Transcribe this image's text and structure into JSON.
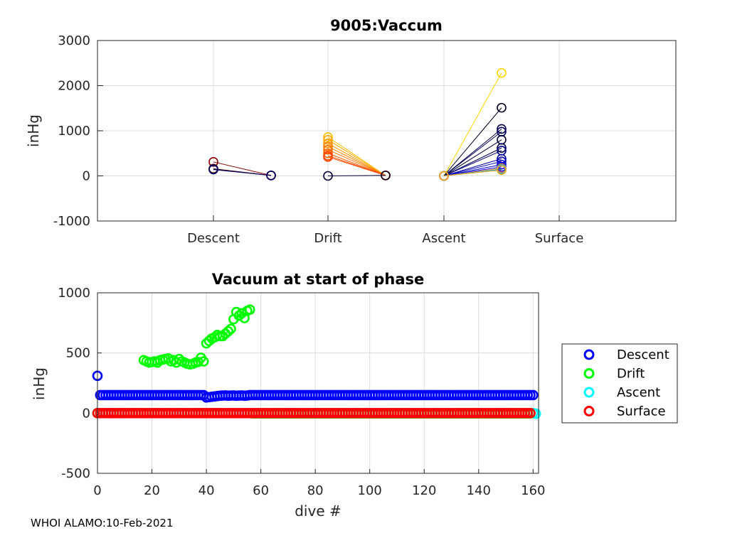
{
  "chart_data": [
    {
      "type": "line",
      "title": "9005:Vaccum",
      "ylabel": "inHg",
      "xlabel": "",
      "ylim": [
        -1000,
        3000
      ],
      "yticks": [
        "-1000",
        "0",
        "1000",
        "2000",
        "3000"
      ],
      "categories": [
        "Descent",
        "Drift",
        "Ascent",
        "Surface"
      ],
      "segments": [
        {
          "phase": "Descent",
          "start": 310,
          "end": 10,
          "color": "#8b0000"
        },
        {
          "phase": "Descent",
          "start": 160,
          "end": 10,
          "color": "#8b1a00"
        },
        {
          "phase": "Descent",
          "start": 150,
          "end": 10,
          "color": "#000033"
        },
        {
          "phase": "Descent",
          "start": 140,
          "end": 10,
          "color": "#000066"
        },
        {
          "phase": "Drift",
          "start": 860,
          "end": 10,
          "color": "#ffc000"
        },
        {
          "phase": "Drift",
          "start": 800,
          "end": 10,
          "color": "#ffa500"
        },
        {
          "phase": "Drift",
          "start": 720,
          "end": 10,
          "color": "#ff9900"
        },
        {
          "phase": "Drift",
          "start": 650,
          "end": 10,
          "color": "#ff8000"
        },
        {
          "phase": "Drift",
          "start": 580,
          "end": 10,
          "color": "#ff7000"
        },
        {
          "phase": "Drift",
          "start": 500,
          "end": 10,
          "color": "#ff6000"
        },
        {
          "phase": "Drift",
          "start": 450,
          "end": 10,
          "color": "#ff5000"
        },
        {
          "phase": "Drift",
          "start": 420,
          "end": 10,
          "color": "#ff4000"
        },
        {
          "phase": "Drift",
          "start": 0,
          "end": 10,
          "color": "#000033"
        },
        {
          "phase": "Ascent",
          "start": 0,
          "end": 2280,
          "color": "#ffd700"
        },
        {
          "phase": "Ascent",
          "start": 0,
          "end": 1510,
          "color": "#000022"
        },
        {
          "phase": "Ascent",
          "start": 0,
          "end": 1040,
          "color": "#000044"
        },
        {
          "phase": "Ascent",
          "start": 0,
          "end": 980,
          "color": "#000066"
        },
        {
          "phase": "Ascent",
          "start": 0,
          "end": 800,
          "color": "#000033"
        },
        {
          "phase": "Ascent",
          "start": 0,
          "end": 620,
          "color": "#00004d"
        },
        {
          "phase": "Ascent",
          "start": 0,
          "end": 560,
          "color": "#000080"
        },
        {
          "phase": "Ascent",
          "start": 0,
          "end": 380,
          "color": "#000099"
        },
        {
          "phase": "Ascent",
          "start": 0,
          "end": 320,
          "color": "#0000b3"
        },
        {
          "phase": "Ascent",
          "start": 0,
          "end": 250,
          "color": "#0000cc"
        },
        {
          "phase": "Ascent",
          "start": 0,
          "end": 200,
          "color": "#0000ff"
        },
        {
          "phase": "Ascent",
          "start": 0,
          "end": 170,
          "color": "#ff8c00"
        },
        {
          "phase": "Ascent",
          "start": 0,
          "end": 150,
          "color": "#1e90ff"
        },
        {
          "phase": "Ascent",
          "start": 0,
          "end": 140,
          "color": "#00bfff"
        },
        {
          "phase": "Ascent",
          "start": 0,
          "end": 130,
          "color": "#ffa500"
        }
      ]
    },
    {
      "type": "scatter",
      "title": "Vacuum at start of phase",
      "xlabel": "dive #",
      "ylabel": "inHg",
      "xlim": [
        0,
        162
      ],
      "ylim": [
        -500,
        1000
      ],
      "xticks": [
        "0",
        "20",
        "40",
        "60",
        "80",
        "100",
        "120",
        "140",
        "160"
      ],
      "yticks": [
        "-500",
        "0",
        "500",
        "1000"
      ],
      "legend_position": "outside-right",
      "series": [
        {
          "name": "Descent",
          "color": "#0000ff",
          "description": "~150 inHg for dives 1–160 (dive 0 at ~310, dips to ~130 near dive 40)"
        },
        {
          "name": "Drift",
          "color": "#00ff00",
          "points": [
            [
              0,
              0
            ],
            [
              5,
              0
            ],
            [
              10,
              0
            ],
            [
              15,
              0
            ],
            [
              17,
              440
            ],
            [
              18,
              430
            ],
            [
              19,
              420
            ],
            [
              20,
              425
            ],
            [
              21,
              430
            ],
            [
              22,
              420
            ],
            [
              23,
              440
            ],
            [
              24,
              445
            ],
            [
              25,
              450
            ],
            [
              26,
              455
            ],
            [
              27,
              430
            ],
            [
              28,
              440
            ],
            [
              29,
              420
            ],
            [
              30,
              450
            ],
            [
              31,
              430
            ],
            [
              32,
              420
            ],
            [
              33,
              410
            ],
            [
              34,
              405
            ],
            [
              35,
              410
            ],
            [
              36,
              420
            ],
            [
              37,
              425
            ],
            [
              38,
              460
            ],
            [
              39,
              430
            ],
            [
              40,
              580
            ],
            [
              41,
              600
            ],
            [
              42,
              620
            ],
            [
              43,
              630
            ],
            [
              44,
              650
            ],
            [
              45,
              640
            ],
            [
              46,
              640
            ],
            [
              47,
              660
            ],
            [
              48,
              680
            ],
            [
              49,
              700
            ],
            [
              50,
              780
            ],
            [
              51,
              840
            ],
            [
              52,
              810
            ],
            [
              53,
              830
            ],
            [
              54,
              790
            ],
            [
              55,
              850
            ],
            [
              56,
              860
            ]
          ]
        },
        {
          "name": "Ascent",
          "color": "#00ffff",
          "description": "~0 inHg for dives 0–161"
        },
        {
          "name": "Surface",
          "color": "#ff0000",
          "description": "~0 inHg for dives 0–159"
        }
      ]
    }
  ],
  "footer": "WHOI ALAMO:10-Feb-2021"
}
